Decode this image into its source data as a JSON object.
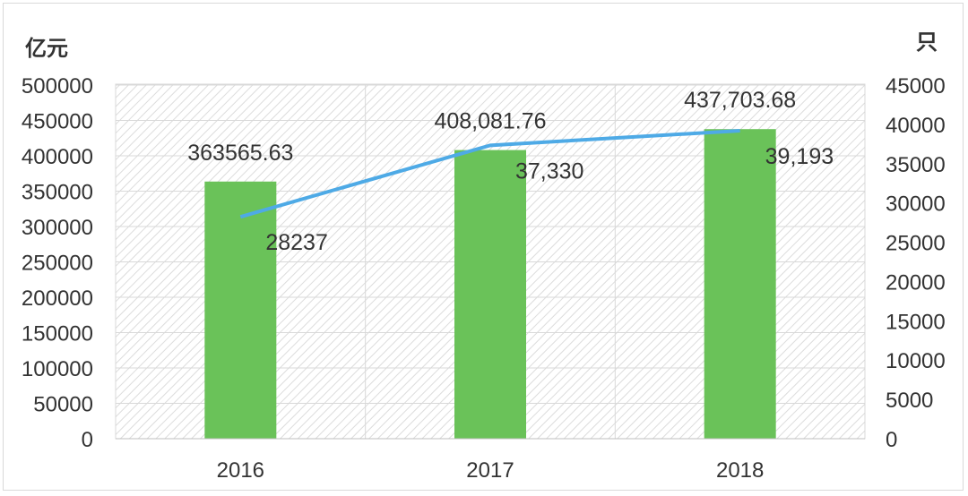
{
  "chart_data": {
    "type": "bar+line",
    "categories": [
      "2016",
      "2017",
      "2018"
    ],
    "series": [
      {
        "kind": "bar",
        "axis": "left",
        "values": [
          363565.63,
          408081.76,
          437703.68
        ],
        "labels": [
          "363565.63",
          "408,081.76",
          "437,703.68"
        ],
        "color": "#6ac259"
      },
      {
        "kind": "line",
        "axis": "right",
        "values": [
          28237,
          37330,
          39193
        ],
        "labels": [
          "28237",
          "37,330",
          "39,193"
        ],
        "color": "#4eaae6"
      }
    ],
    "left_axis": {
      "unit": "亿元",
      "ylim": [
        0,
        500000
      ],
      "ticks": [
        "0",
        "50000",
        "100000",
        "150000",
        "200000",
        "250000",
        "300000",
        "350000",
        "400000",
        "450000",
        "500000"
      ]
    },
    "right_axis": {
      "unit": "只",
      "ylim": [
        0,
        45000
      ],
      "ticks": [
        "0",
        "5000",
        "10000",
        "15000",
        "20000",
        "25000",
        "30000",
        "35000",
        "40000",
        "45000"
      ]
    },
    "grid": true,
    "background": "hatched"
  }
}
